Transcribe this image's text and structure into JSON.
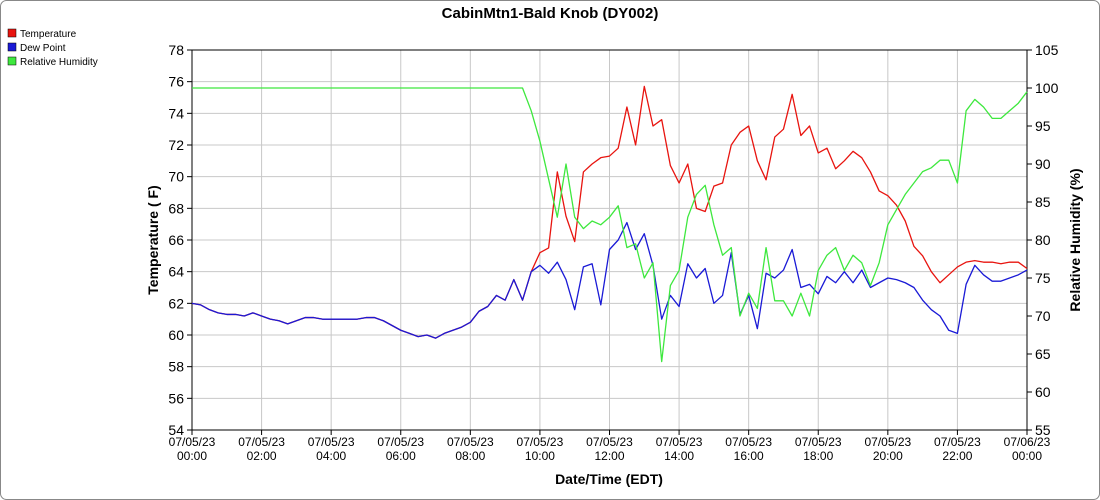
{
  "chart_data": {
    "type": "line",
    "title": "CabinMtn1-Bald Knob (DY002)",
    "xlabel": "Date/Time (EDT)",
    "ylabel": "Temperature ( F)",
    "y2label": "Relative Humidity (%)",
    "grid": true,
    "legend": "top-left",
    "xlim": [
      0,
      24
    ],
    "xticks": [
      {
        "value": 0,
        "label": [
          "07/05/23",
          "00:00"
        ]
      },
      {
        "value": 2,
        "label": [
          "07/05/23",
          "02:00"
        ]
      },
      {
        "value": 4,
        "label": [
          "07/05/23",
          "04:00"
        ]
      },
      {
        "value": 6,
        "label": [
          "07/05/23",
          "06:00"
        ]
      },
      {
        "value": 8,
        "label": [
          "07/05/23",
          "08:00"
        ]
      },
      {
        "value": 10,
        "label": [
          "07/05/23",
          "10:00"
        ]
      },
      {
        "value": 12,
        "label": [
          "07/05/23",
          "12:00"
        ]
      },
      {
        "value": 14,
        "label": [
          "07/05/23",
          "14:00"
        ]
      },
      {
        "value": 16,
        "label": [
          "07/05/23",
          "16:00"
        ]
      },
      {
        "value": 18,
        "label": [
          "07/05/23",
          "18:00"
        ]
      },
      {
        "value": 20,
        "label": [
          "07/05/23",
          "20:00"
        ]
      },
      {
        "value": 22,
        "label": [
          "07/05/23",
          "22:00"
        ]
      },
      {
        "value": 24,
        "label": [
          "07/06/23",
          "00:00"
        ]
      }
    ],
    "ylim": [
      54,
      78
    ],
    "yticks": [
      54,
      56,
      58,
      60,
      62,
      64,
      66,
      68,
      70,
      72,
      74,
      76,
      78
    ],
    "y2lim": [
      55,
      105
    ],
    "y2ticks": [
      55,
      60,
      65,
      70,
      75,
      80,
      85,
      90,
      95,
      100,
      105
    ],
    "x": [
      0,
      0.25,
      0.5,
      0.75,
      1,
      1.25,
      1.5,
      1.75,
      2,
      2.25,
      2.5,
      2.75,
      3,
      3.25,
      3.5,
      3.75,
      4,
      4.25,
      4.5,
      4.75,
      5,
      5.25,
      5.5,
      5.75,
      6,
      6.25,
      6.5,
      6.75,
      7,
      7.25,
      7.5,
      7.75,
      8,
      8.25,
      8.5,
      8.75,
      9,
      9.25,
      9.5,
      9.75,
      10,
      10.25,
      10.5,
      10.75,
      11,
      11.25,
      11.5,
      11.75,
      12,
      12.25,
      12.5,
      12.75,
      13,
      13.25,
      13.5,
      13.75,
      14,
      14.25,
      14.5,
      14.75,
      15,
      15.25,
      15.5,
      15.75,
      16,
      16.25,
      16.5,
      16.75,
      17,
      17.25,
      17.5,
      17.75,
      18,
      18.25,
      18.5,
      18.75,
      19,
      19.25,
      19.5,
      19.75,
      20,
      20.25,
      20.5,
      20.75,
      21,
      21.25,
      21.5,
      21.75,
      22,
      22.25,
      22.5,
      22.75,
      23,
      23.25,
      23.5,
      23.75,
      24
    ],
    "series": [
      {
        "name": "Temperature",
        "color": "#e8140f",
        "values": [
          62.0,
          61.9,
          61.6,
          61.4,
          61.3,
          61.3,
          61.2,
          61.4,
          61.2,
          61.0,
          60.9,
          60.7,
          60.9,
          61.1,
          61.1,
          61.0,
          61.0,
          61.0,
          61.0,
          61.0,
          61.1,
          61.1,
          60.9,
          60.6,
          60.3,
          60.1,
          59.9,
          60.0,
          59.8,
          60.1,
          60.3,
          60.5,
          60.8,
          61.5,
          61.8,
          62.5,
          62.2,
          63.5,
          62.2,
          64.0,
          65.2,
          65.5,
          70.3,
          67.5,
          65.9,
          70.3,
          70.8,
          71.2,
          71.3,
          71.8,
          74.4,
          72.0,
          75.7,
          73.2,
          73.6,
          70.7,
          69.6,
          70.8,
          68.0,
          67.8,
          69.4,
          69.6,
          72.0,
          72.8,
          73.2,
          71.0,
          69.8,
          72.5,
          73.0,
          75.2,
          72.6,
          73.2,
          71.5,
          71.8,
          70.5,
          71.0,
          71.6,
          71.2,
          70.3,
          69.1,
          68.8,
          68.2,
          67.2,
          65.6,
          65.0,
          64.0,
          63.3,
          63.8,
          64.3,
          64.6,
          64.7,
          64.6,
          64.6,
          64.5,
          64.6,
          64.6,
          64.2
        ]
      },
      {
        "name": "Dew Point",
        "color": "#1a1ad6",
        "values": [
          62.0,
          61.9,
          61.6,
          61.4,
          61.3,
          61.3,
          61.2,
          61.4,
          61.2,
          61.0,
          60.9,
          60.7,
          60.9,
          61.1,
          61.1,
          61.0,
          61.0,
          61.0,
          61.0,
          61.0,
          61.1,
          61.1,
          60.9,
          60.6,
          60.3,
          60.1,
          59.9,
          60.0,
          59.8,
          60.1,
          60.3,
          60.5,
          60.8,
          61.5,
          61.8,
          62.5,
          62.2,
          63.5,
          62.2,
          64.0,
          64.4,
          63.9,
          64.6,
          63.5,
          61.6,
          64.3,
          64.5,
          61.9,
          65.4,
          66.0,
          67.1,
          65.4,
          66.4,
          64.4,
          61.0,
          62.5,
          61.8,
          64.5,
          63.6,
          64.2,
          62.0,
          62.5,
          65.2,
          61.3,
          62.5,
          60.4,
          63.9,
          63.6,
          64.1,
          65.4,
          63.0,
          63.2,
          62.6,
          63.7,
          63.3,
          64.0,
          63.3,
          64.1,
          63.0,
          63.3,
          63.6,
          63.5,
          63.3,
          63.0,
          62.2,
          61.6,
          61.2,
          60.3,
          60.1,
          63.2,
          64.4,
          63.8,
          63.4,
          63.4,
          63.6,
          63.8,
          64.1
        ]
      },
      {
        "name": "Relative Humidity",
        "color": "#3ee83e",
        "axis": "y2",
        "values": [
          100,
          100,
          100,
          100,
          100,
          100,
          100,
          100,
          100,
          100,
          100,
          100,
          100,
          100,
          100,
          100,
          100,
          100,
          100,
          100,
          100,
          100,
          100,
          100,
          100,
          100,
          100,
          100,
          100,
          100,
          100,
          100,
          100,
          100,
          100,
          100,
          100,
          100,
          100,
          97,
          93,
          88,
          83,
          90,
          83,
          81.5,
          82.5,
          82,
          83,
          84.5,
          79,
          79.5,
          75,
          77,
          64,
          74,
          76,
          83,
          86,
          87.2,
          82,
          78,
          79,
          70,
          73,
          71,
          79,
          72,
          72,
          70,
          73,
          70,
          76,
          78,
          79,
          76,
          78,
          77,
          74,
          77,
          82,
          84,
          86,
          87.5,
          89,
          89.5,
          90.5,
          90.5,
          87.5,
          97,
          98.5,
          97.5,
          96,
          96,
          97,
          98,
          99.5
        ]
      }
    ]
  }
}
